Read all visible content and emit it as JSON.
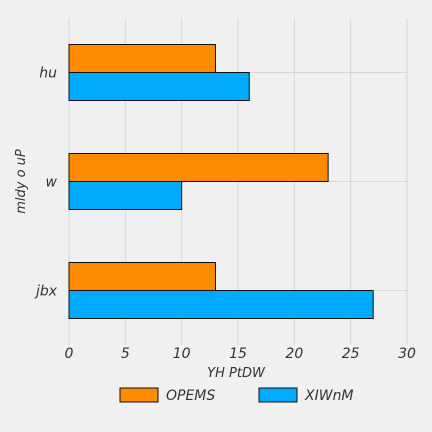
{
  "chart_data": {
    "type": "bar",
    "orientation": "horizontal",
    "categories": [
      "jbx",
      "w",
      "hu"
    ],
    "series": [
      {
        "name": "OPEMS",
        "color": "#ff8c00",
        "values": [
          13,
          23,
          13
        ]
      },
      {
        "name": "XIWnM",
        "color": "#00aaff",
        "values": [
          27,
          10,
          16
        ]
      }
    ],
    "xlabel": "YH  PtDW",
    "ylabel": "mldy o  uP",
    "xlim": [
      0,
      30
    ],
    "xticks": [
      0,
      5,
      10,
      15,
      20,
      25,
      30
    ],
    "grid": true,
    "legend_position": "bottom"
  }
}
